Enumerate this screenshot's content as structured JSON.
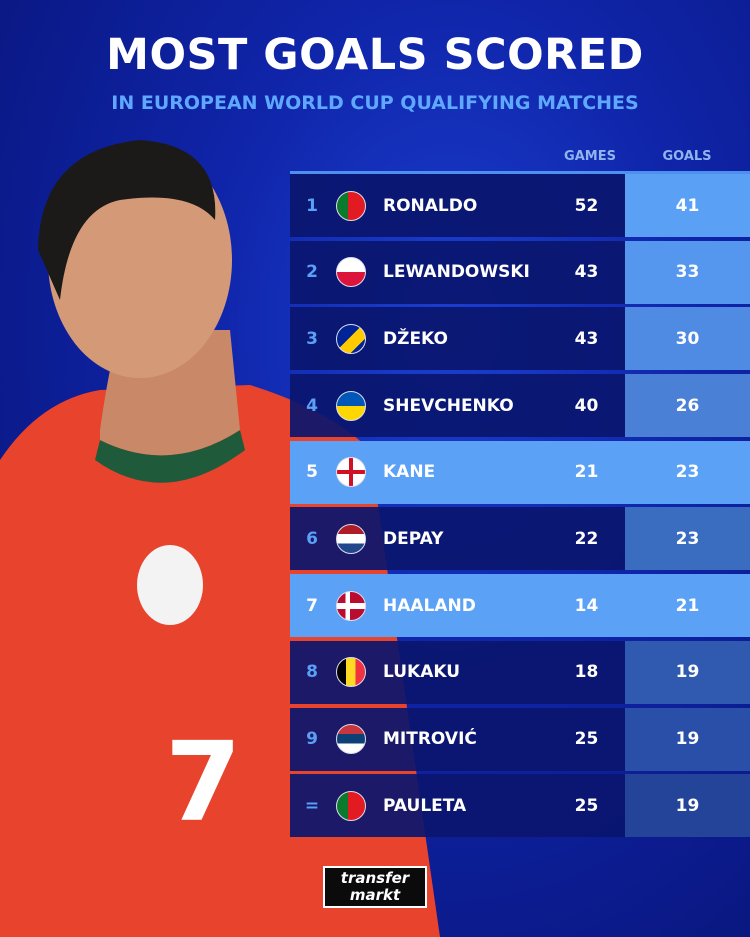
{
  "header": {
    "title": "MOST GOALS SCORED",
    "subtitle": "IN EUROPEAN WORLD CUP QUALIFYING MATCHES"
  },
  "logo": {
    "text": "transfermarkt",
    "line1": "transfer",
    "line2": "markt"
  },
  "colors": {
    "row_dark": "#0a166e",
    "highlight": "#5ba2f7",
    "rank_blue": "#5aa0f5"
  },
  "chart_data": {
    "type": "table",
    "title": "MOST GOALS SCORED",
    "subtitle": "IN EUROPEAN WORLD CUP QUALIFYING MATCHES",
    "columns": [
      "GAMES",
      "GOALS"
    ],
    "rows": [
      {
        "rank": "1",
        "name": "RONALDO",
        "flag": "portugal-flag-icon",
        "games": "52",
        "goals": "41",
        "highlight": false,
        "goals_color": "#5aa0f5"
      },
      {
        "rank": "2",
        "name": "LEWANDOWSKI",
        "flag": "poland-flag-icon",
        "games": "43",
        "goals": "33",
        "highlight": false,
        "goals_color": "#5596ee"
      },
      {
        "rank": "3",
        "name": "DŽEKO",
        "flag": "bosnia-flag-icon",
        "games": "43",
        "goals": "30",
        "highlight": false,
        "goals_color": "#4f8be2"
      },
      {
        "rank": "4",
        "name": "SHEVCHENKO",
        "flag": "ukraine-flag-icon",
        "games": "40",
        "goals": "26",
        "highlight": false,
        "goals_color": "#4a80d6"
      },
      {
        "rank": "5",
        "name": "KANE",
        "flag": "england-flag-icon",
        "games": "21",
        "goals": "23",
        "highlight": true,
        "goals_color": "#5ba2f7"
      },
      {
        "rank": "6",
        "name": "DEPAY",
        "flag": "netherlands-flag-icon",
        "games": "22",
        "goals": "23",
        "highlight": false,
        "goals_color": "#3a6cc0"
      },
      {
        "rank": "7",
        "name": "HAALAND",
        "flag": "norway-flag-icon",
        "games": "14",
        "goals": "21",
        "highlight": true,
        "goals_color": "#5ba2f7"
      },
      {
        "rank": "8",
        "name": "LUKAKU",
        "flag": "belgium-flag-icon",
        "games": "18",
        "goals": "19",
        "highlight": false,
        "goals_color": "#2f5ab0"
      },
      {
        "rank": "9",
        "name": "MITROVIĆ",
        "flag": "serbia-flag-icon",
        "games": "25",
        "goals": "19",
        "highlight": false,
        "goals_color": "#2a4fa8"
      },
      {
        "rank": "=",
        "name": "PAULETA",
        "flag": "portugal-flag-icon",
        "games": "25",
        "goals": "19",
        "highlight": false,
        "goals_color": "#24449a"
      }
    ]
  }
}
